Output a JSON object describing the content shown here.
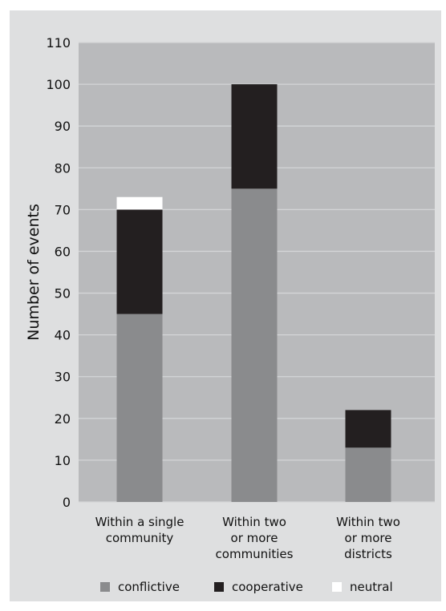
{
  "chart_data": {
    "type": "bar",
    "stacked": true,
    "title": "",
    "xlabel": "",
    "ylabel": "Number of events",
    "ylim": [
      0,
      110
    ],
    "yticks": [
      0,
      10,
      20,
      30,
      40,
      50,
      60,
      70,
      80,
      90,
      100,
      110
    ],
    "grid": true,
    "legend_position": "bottom",
    "categories": [
      [
        "Within a single",
        "community"
      ],
      [
        "Within two",
        "or more",
        "communities"
      ],
      [
        "Within two",
        "or more",
        "districts"
      ]
    ],
    "series": [
      {
        "name": "conflictive",
        "color": "#8a8b8d",
        "values": [
          45,
          75,
          13
        ]
      },
      {
        "name": "cooperative",
        "color": "#231f20",
        "values": [
          25,
          25,
          9
        ]
      },
      {
        "name": "neutral",
        "color": "#ffffff",
        "values": [
          3,
          0,
          0
        ]
      }
    ],
    "plot_background": "#b9babc",
    "gridline_color": "#d4d5d7"
  }
}
